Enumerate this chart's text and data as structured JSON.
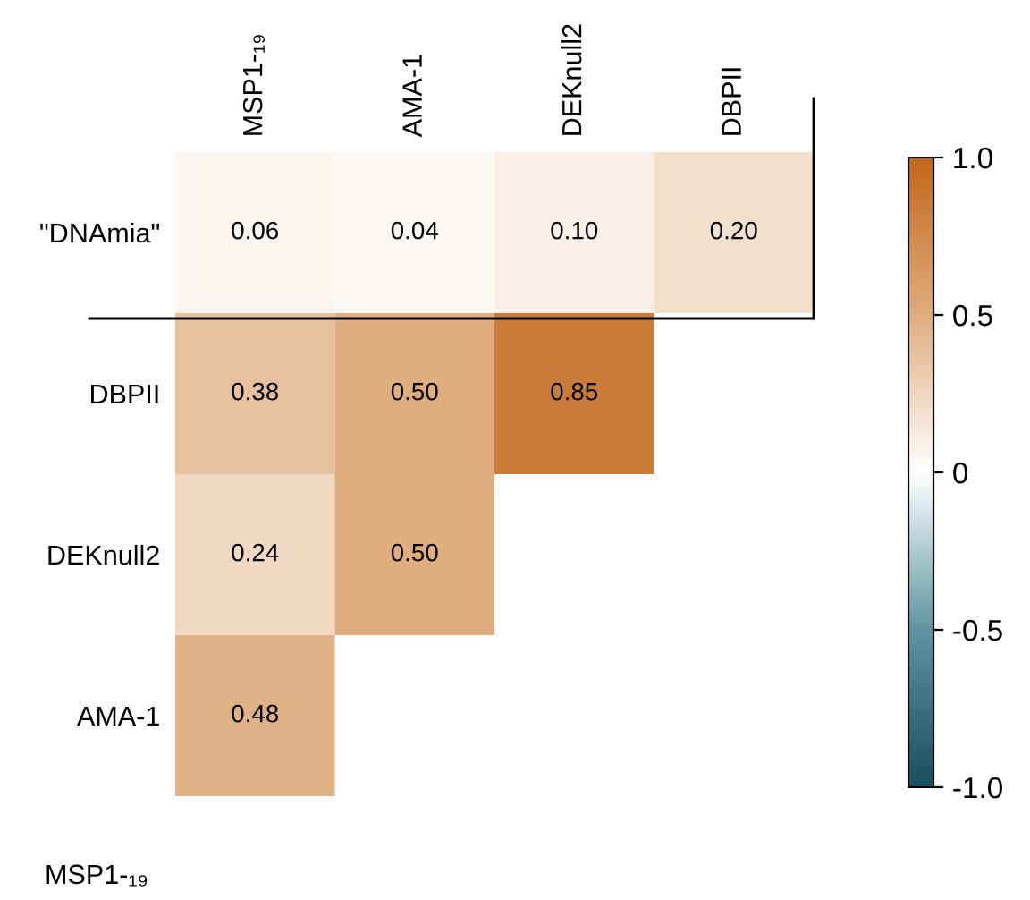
{
  "chart_data": {
    "type": "heatmap",
    "categories": [
      "MSP1-₁₉",
      "AMA-1",
      "DEKnull2",
      "DBPII"
    ],
    "y_categories": [
      "\"DNAmia\"",
      "DBPII",
      "DEKnull2",
      "AMA-1"
    ],
    "cells": [
      [
        0.06,
        0.04,
        0.1,
        0.2
      ],
      [
        0.38,
        0.5,
        0.85,
        null
      ],
      [
        0.24,
        0.5,
        null,
        null
      ],
      [
        0.48,
        null,
        null,
        null
      ]
    ],
    "cell_labels": [
      [
        "0.06",
        "0.04",
        "0.10",
        "0.20"
      ],
      [
        "0.38",
        "0.50",
        "0.85",
        null
      ],
      [
        "0.24",
        "0.50",
        null,
        null
      ],
      [
        "0.48",
        null,
        null,
        null
      ]
    ],
    "clim": [
      -1.0,
      1.0
    ],
    "cticks": [
      {
        "value": 1.0,
        "label": "1.0"
      },
      {
        "value": 0.5,
        "label": "0.5"
      },
      {
        "value": 0,
        "label": "0"
      },
      {
        "value": -0.5,
        "label": "-0.5"
      },
      {
        "value": -1.0,
        "label": "-1.0"
      }
    ],
    "annotations": [
      "MSP1-₁₉"
    ]
  }
}
